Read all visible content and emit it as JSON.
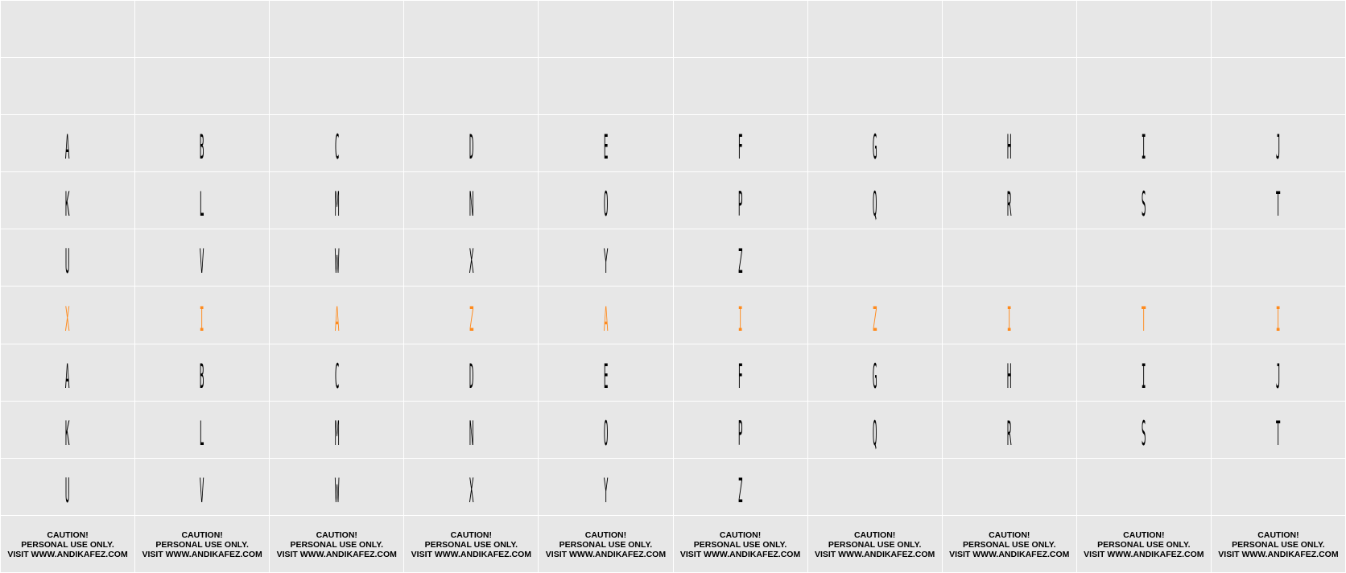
{
  "colors": {
    "background": "#e7e7e7",
    "gridline": "#ffffff",
    "glyph": "#000000",
    "accent": "#ff8a1c"
  },
  "rows": [
    {
      "type": "empty",
      "cells": [
        "",
        "",
        "",
        "",
        "",
        "",
        "",
        "",
        "",
        ""
      ]
    },
    {
      "type": "empty",
      "cells": [
        "",
        "",
        "",
        "",
        "",
        "",
        "",
        "",
        "",
        ""
      ]
    },
    {
      "type": "glyphs",
      "cells": [
        "A",
        "B",
        "C",
        "D",
        "E",
        "F",
        "G",
        "H",
        "I",
        "J"
      ]
    },
    {
      "type": "glyphs",
      "cells": [
        "K",
        "L",
        "M",
        "N",
        "O",
        "P",
        "Q",
        "R",
        "S",
        "T"
      ]
    },
    {
      "type": "glyphs",
      "cells": [
        "U",
        "V",
        "W",
        "X",
        "Y",
        "Z",
        "",
        "",
        "",
        ""
      ]
    },
    {
      "type": "accent",
      "cells": [
        "X",
        "I",
        "A",
        "Z",
        "A",
        "I",
        "Z",
        "I",
        "T",
        "I"
      ]
    },
    {
      "type": "glyphs",
      "cells": [
        "A",
        "B",
        "C",
        "D",
        "E",
        "F",
        "G",
        "H",
        "I",
        "J"
      ]
    },
    {
      "type": "glyphs",
      "cells": [
        "K",
        "L",
        "M",
        "N",
        "O",
        "P",
        "Q",
        "R",
        "S",
        "T"
      ]
    },
    {
      "type": "glyphs",
      "cells": [
        "U",
        "V",
        "W",
        "X",
        "Y",
        "Z",
        "",
        "",
        "",
        ""
      ]
    }
  ],
  "caution": {
    "line1": "CAUTION!",
    "line2": "PERSONAL USE ONLY.",
    "line3": "VISIT WWW.ANDIKAFEZ.COM"
  },
  "caution_count": 10
}
